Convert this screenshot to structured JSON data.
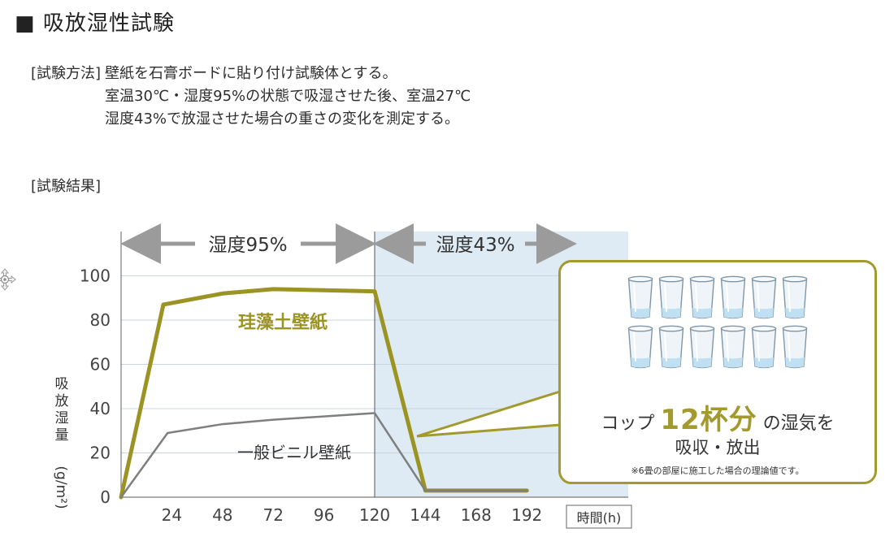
{
  "title": "■ 吸放湿性試験",
  "method": {
    "label": "[試験方法]",
    "line1": "壁紙を石膏ボードに貼り付け試験体とする。",
    "line2": "室温30℃・湿度95%の状態で吸湿させた後、室温27℃",
    "line3": "湿度43%で放湿させた場合の重さの変化を測定する。"
  },
  "result_label": "[試験結果]",
  "chart_data": {
    "type": "line",
    "xlabel": "時間(h)",
    "ylabel": "吸放湿量(g/m²)",
    "x_ticks": [
      24,
      48,
      72,
      96,
      120,
      144,
      168,
      192
    ],
    "y_ticks": [
      0,
      20,
      40,
      60,
      80,
      100
    ],
    "xlim": [
      0,
      240
    ],
    "ylim": [
      0,
      120
    ],
    "grid": true,
    "phases": [
      {
        "label": "湿度95%",
        "from": 0,
        "to": 120
      },
      {
        "label": "湿度43%",
        "from": 120,
        "to": 240
      }
    ],
    "series": [
      {
        "name": "珪藻土壁紙",
        "color": "#9c9325",
        "x": [
          0,
          20,
          48,
          72,
          120,
          144,
          192
        ],
        "y": [
          0,
          87,
          92,
          94,
          93,
          3,
          3
        ]
      },
      {
        "name": "一般ビニル壁紙",
        "color": "#7f7f7f",
        "x": [
          0,
          22,
          48,
          72,
          120,
          144,
          192
        ],
        "y": [
          0,
          29,
          33,
          35,
          38,
          3,
          3
        ]
      }
    ]
  },
  "callout": {
    "cup_count": 12,
    "text_before": "コップ",
    "big": "12杯分",
    "text_after": "の湿気を",
    "line2": "吸収・放出",
    "note": "※6畳の部屋に施工した場合の理論値です。",
    "border_color": "#a39a2e"
  },
  "colors": {
    "highlight_bg": "#deebf5",
    "arrow": "#9b9b9b",
    "grid": "#c9d4dd",
    "axis": "#7a7a7a"
  },
  "icons": [
    "move-cursor-icon",
    "cup-icon"
  ]
}
